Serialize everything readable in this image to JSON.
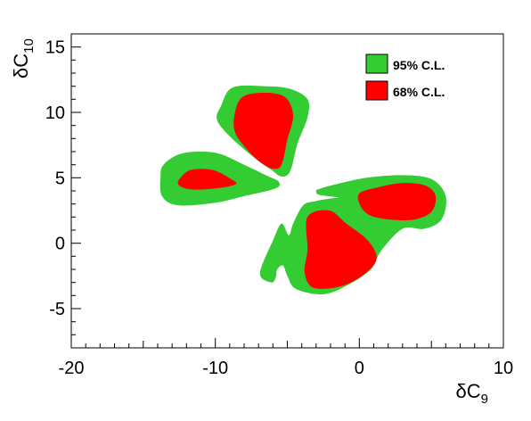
{
  "chart_data": {
    "type": "contour",
    "xlabel": {
      "symbol": "δC",
      "subscript": "9"
    },
    "ylabel": {
      "symbol": "δC",
      "subscript": "10"
    },
    "xlim": [
      -20,
      10
    ],
    "ylim": [
      -8,
      16
    ],
    "x_ticks": [
      -20,
      -10,
      0,
      10
    ],
    "x_tick_labels": [
      "-20",
      "-10",
      "0",
      "10"
    ],
    "y_ticks": [
      -5,
      0,
      5,
      10,
      15
    ],
    "y_tick_labels": [
      "-5",
      "0",
      "5",
      "10",
      "15"
    ],
    "x_minor_step": 1,
    "y_minor_step": 1,
    "grid": false,
    "legend_position": "top-right",
    "series": [
      {
        "name": "95% C.L.",
        "color": "#33cc33",
        "regions": [
          [
            [
              -9.6,
              10.5
            ],
            [
              -8.8,
              11.9
            ],
            [
              -6.5,
              12
            ],
            [
              -4.8,
              11.8
            ],
            [
              -3.6,
              11
            ],
            [
              -3.6,
              9.6
            ],
            [
              -4.3,
              7.6
            ],
            [
              -4.8,
              5.5
            ],
            [
              -5.4,
              5.1
            ],
            [
              -6.1,
              5.6
            ],
            [
              -7.6,
              6.8
            ],
            [
              -9.2,
              8.4
            ],
            [
              -9.9,
              9.5
            ]
          ],
          [
            [
              -13.8,
              5.1
            ],
            [
              -13.6,
              6
            ],
            [
              -12.5,
              6.8
            ],
            [
              -11,
              7
            ],
            [
              -9.6,
              6.8
            ],
            [
              -8,
              6
            ],
            [
              -6.3,
              5.1
            ],
            [
              -5.6,
              4.7
            ],
            [
              -5.8,
              4.2
            ],
            [
              -8,
              3.6
            ],
            [
              -10,
              3.1
            ],
            [
              -12.6,
              2.9
            ],
            [
              -13.7,
              3.6
            ]
          ],
          [
            [
              -2.9,
              4.1
            ],
            [
              -2,
              4.4
            ],
            [
              0.5,
              5
            ],
            [
              3,
              5.2
            ],
            [
              5,
              4.9
            ],
            [
              6,
              3.6
            ],
            [
              5.7,
              1.8
            ],
            [
              4.5,
              1.1
            ],
            [
              3,
              1.1
            ],
            [
              1.5,
              -0.6
            ],
            [
              0.8,
              -2
            ],
            [
              -0.8,
              -3.2
            ],
            [
              -2.5,
              -3.9
            ],
            [
              -4.4,
              -3.5
            ],
            [
              -5,
              -2.5
            ],
            [
              -5.3,
              -1.7
            ],
            [
              -5.7,
              -2
            ],
            [
              -5.8,
              -2.6
            ],
            [
              -6.1,
              -3
            ],
            [
              -6.9,
              -2.3
            ],
            [
              -6,
              0.2
            ],
            [
              -5.4,
              1.5
            ],
            [
              -4.9,
              0.6
            ],
            [
              -4.6,
              1.5
            ],
            [
              -3.9,
              2.9
            ],
            [
              -3.1,
              3.2
            ],
            [
              -2.1,
              3.4
            ],
            [
              -1.5,
              3.5
            ],
            [
              -2.8,
              3.7
            ],
            [
              -3,
              4
            ]
          ]
        ]
      },
      {
        "name": "68% C.L.",
        "color": "#ff0000",
        "regions": [
          [
            [
              -8.7,
              9.6
            ],
            [
              -8.2,
              11.1
            ],
            [
              -6.8,
              11.5
            ],
            [
              -5.2,
              11.2
            ],
            [
              -4.6,
              9.8
            ],
            [
              -5,
              7.9
            ],
            [
              -5.4,
              6
            ],
            [
              -6,
              5.7
            ],
            [
              -6.9,
              6.2
            ],
            [
              -7.9,
              7.3
            ],
            [
              -8.6,
              8.4
            ]
          ],
          [
            [
              -12.5,
              4.9
            ],
            [
              -11.7,
              5.6
            ],
            [
              -10.2,
              5.6
            ],
            [
              -8.9,
              4.9
            ],
            [
              -8.6,
              4.5
            ],
            [
              -9.9,
              4.2
            ],
            [
              -11.6,
              4.1
            ],
            [
              -12.5,
              4.4
            ]
          ],
          [
            [
              0,
              3.8
            ],
            [
              1.4,
              4.3
            ],
            [
              3,
              4.6
            ],
            [
              4.6,
              4.4
            ],
            [
              5.3,
              3.6
            ],
            [
              5,
              2.4
            ],
            [
              3.8,
              1.8
            ],
            [
              2.2,
              1.8
            ],
            [
              0.8,
              2.1
            ],
            [
              0.1,
              2.8
            ]
          ],
          [
            [
              -3.6,
              2
            ],
            [
              -2.1,
              2.5
            ],
            [
              -0.9,
              1.5
            ],
            [
              0.6,
              0.2
            ],
            [
              1.2,
              -1.2
            ],
            [
              0.3,
              -2.4
            ],
            [
              -1.3,
              -3.3
            ],
            [
              -3.2,
              -3.4
            ],
            [
              -3.8,
              -2.2
            ],
            [
              -3.6,
              -0.5
            ]
          ]
        ]
      }
    ]
  }
}
